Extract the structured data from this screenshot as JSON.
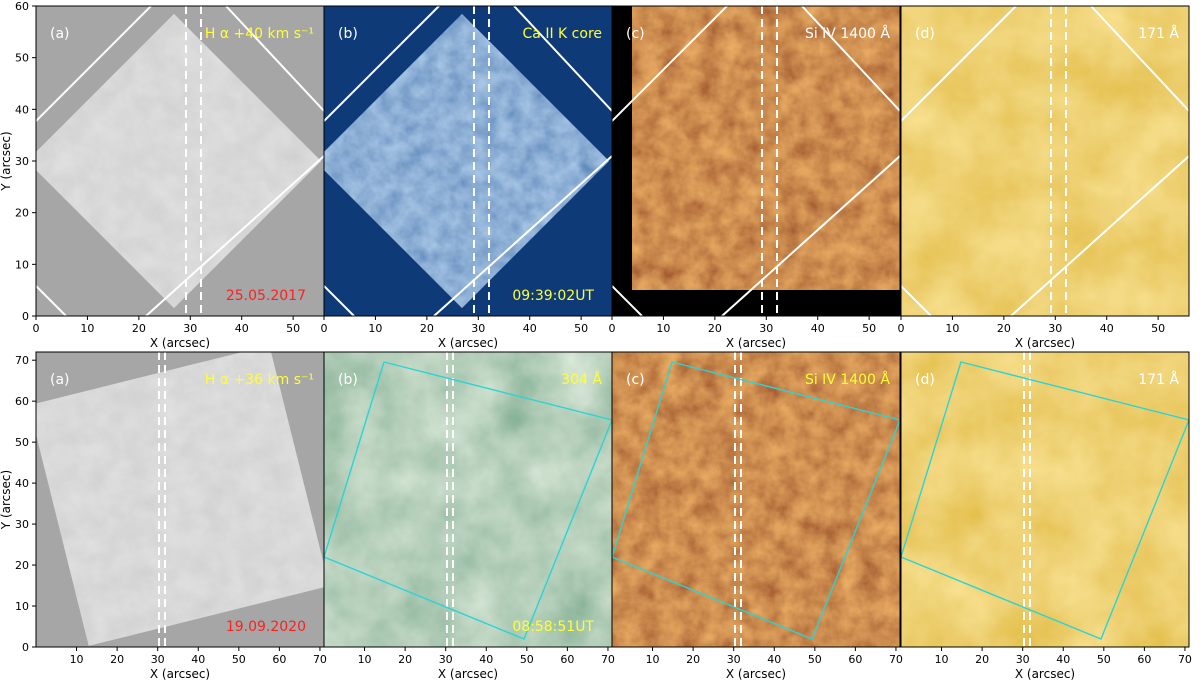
{
  "figure": {
    "rows": [
      {
        "x_axis_label": "X (arcsec)",
        "y_axis_label": "Y (arcsec)",
        "x_ticks": [
          "0",
          "10",
          "20",
          "30",
          "40",
          "50"
        ],
        "y_ticks": [
          "0",
          "10",
          "20",
          "30",
          "40",
          "50",
          "60"
        ],
        "panels": [
          {
            "letter": "(a)",
            "label": "H α +40 km s⁻¹",
            "extra": "25.05.2017",
            "extra_color": "#ff2020",
            "label_color": "#ffff33",
            "scheme": "gray"
          },
          {
            "letter": "(b)",
            "label": "Ca II K core",
            "extra": "09:39:02UT",
            "extra_color": "#ffff33",
            "label_color": "#ffff33",
            "scheme": "blue"
          },
          {
            "letter": "(c)",
            "label": "Si IV 1400 Å",
            "extra": "",
            "extra_color": "#ffff33",
            "label_color": "#ffffff",
            "scheme": "red"
          },
          {
            "letter": "(d)",
            "label": "171 Å",
            "extra": "",
            "extra_color": "#ffff33",
            "label_color": "#ffffff",
            "scheme": "gold"
          }
        ]
      },
      {
        "x_axis_label": "X (arcsec)",
        "y_axis_label": "Y (arcsec)",
        "x_ticks": [
          "10",
          "20",
          "30",
          "40",
          "50",
          "60",
          "70"
        ],
        "y_ticks": [
          "0",
          "10",
          "20",
          "30",
          "40",
          "50",
          "60",
          "70"
        ],
        "panels": [
          {
            "letter": "(a)",
            "label": "H α +36 km s⁻¹",
            "extra": "19.09.2020",
            "extra_color": "#ff2020",
            "label_color": "#ffff33",
            "scheme": "gray"
          },
          {
            "letter": "(b)",
            "label": "304 Å",
            "extra": "08:58:51UT",
            "extra_color": "#ffff33",
            "label_color": "#ffff33",
            "scheme": "green"
          },
          {
            "letter": "(c)",
            "label": "Si IV 1400 Å",
            "extra": "",
            "extra_color": "#ffff33",
            "label_color": "#ffff33",
            "scheme": "red"
          },
          {
            "letter": "(d)",
            "label": "171 Å",
            "extra": "",
            "extra_color": "#ffff33",
            "label_color": "#ffffff",
            "scheme": "gold"
          }
        ]
      }
    ],
    "colors": {
      "gray": [
        "#9a9a9a",
        "#c8c8c8"
      ],
      "blue": [
        "#0b2d6e",
        "#7fb0e8"
      ],
      "red": [
        "#3a0000",
        "#ff8a2a"
      ],
      "gold": [
        "#b87300",
        "#ffd45a"
      ],
      "green": [
        "#1f5a36",
        "#cfe6c8"
      ],
      "overlay_white": "#ffffff",
      "overlay_cyan": "#2ad4d4"
    }
  }
}
